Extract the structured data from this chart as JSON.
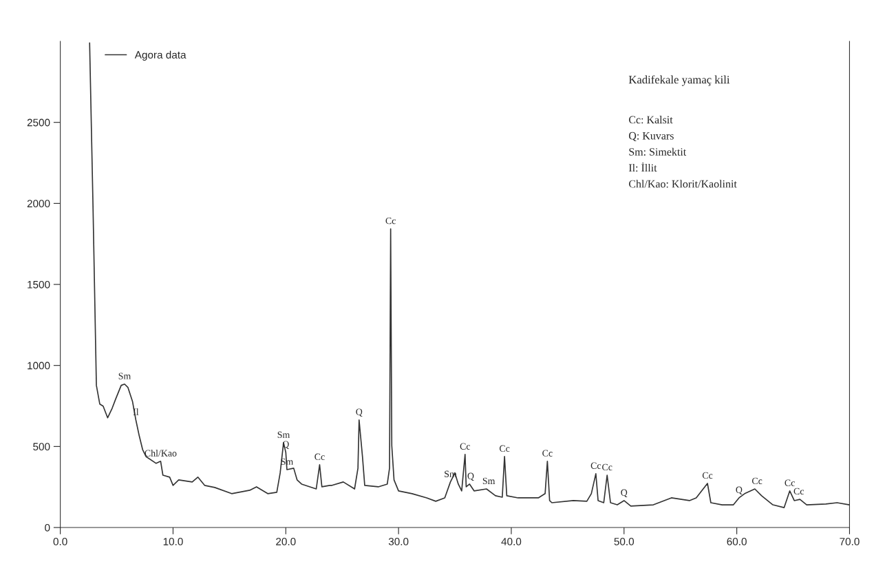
{
  "chart_data": {
    "type": "line",
    "x": [
      2.6,
      2.9,
      3.2,
      3.5,
      3.8,
      4.2,
      4.6,
      4.9,
      5.4,
      5.7,
      6.0,
      6.4,
      6.7,
      7.0,
      7.3,
      7.6,
      8.5,
      8.9,
      9.1,
      9.7,
      10.0,
      10.5,
      11.7,
      12.2,
      12.8,
      13.7,
      15.2,
      16.8,
      17.4,
      18.4,
      19.2,
      19.5,
      19.8,
      20.0,
      20.1,
      20.7,
      21.0,
      21.4,
      22.7,
      23.0,
      23.2,
      23.9,
      24.1,
      25.1,
      26.1,
      26.4,
      26.5,
      26.8,
      27.0,
      28.2,
      29.0,
      29.2,
      29.3,
      29.4,
      29.6,
      30.0,
      31.2,
      32.5,
      33.3,
      34.1,
      34.6,
      35.0,
      35.3,
      35.6,
      35.9,
      36.0,
      36.3,
      36.7,
      37.8,
      38.6,
      39.2,
      39.4,
      39.6,
      40.6,
      42.4,
      43.0,
      43.2,
      43.4,
      43.6,
      45.5,
      46.7,
      47.1,
      47.5,
      47.7,
      48.2,
      48.5,
      48.8,
      49.4,
      50.0,
      50.6,
      52.6,
      54.2,
      55.8,
      56.4,
      57.4,
      57.7,
      58.7,
      59.7,
      60.2,
      60.7,
      61.6,
      62.2,
      63.2,
      64.2,
      64.7,
      65.1,
      65.6,
      66.2,
      67.9,
      68.9,
      70.0
    ],
    "series": [
      {
        "name": "Agora data",
        "color": "#333333",
        "values": [
          2990,
          1983,
          877,
          762,
          749,
          677,
          736,
          791,
          877,
          885,
          864,
          779,
          664,
          566,
          481,
          438,
          396,
          409,
          323,
          311,
          260,
          294,
          281,
          311,
          260,
          247,
          209,
          230,
          251,
          209,
          217,
          336,
          523,
          464,
          357,
          366,
          294,
          268,
          238,
          387,
          251,
          260,
          260,
          281,
          238,
          366,
          664,
          438,
          260,
          251,
          268,
          366,
          1843,
          506,
          294,
          226,
          209,
          183,
          162,
          183,
          281,
          336,
          268,
          226,
          451,
          251,
          268,
          226,
          238,
          196,
          187,
          438,
          196,
          183,
          183,
          209,
          409,
          166,
          153,
          166,
          162,
          209,
          332,
          166,
          153,
          323,
          153,
          140,
          166,
          132,
          140,
          183,
          166,
          183,
          272,
          153,
          140,
          140,
          183,
          209,
          238,
          196,
          140,
          123,
          226,
          166,
          174,
          140,
          145,
          153,
          140
        ]
      }
    ],
    "xlim": [
      0,
      70
    ],
    "ylim": [
      0,
      3000
    ],
    "xticks": [
      {
        "value": 0,
        "label": "0.0"
      },
      {
        "value": 10,
        "label": "10.0"
      },
      {
        "value": 20,
        "label": "20.0"
      },
      {
        "value": 30,
        "label": "30.0"
      },
      {
        "value": 40,
        "label": "40.0"
      },
      {
        "value": 50,
        "label": "50.0"
      },
      {
        "value": 60,
        "label": "60.0"
      },
      {
        "value": 70,
        "label": "70.0"
      }
    ],
    "yticks": [
      0,
      500,
      1000,
      1500,
      2000,
      2500
    ],
    "grid": false,
    "legend": "top left",
    "marker": "none",
    "line_style": "solid",
    "annotations": [
      "Kadifekale yamaç kili",
      "Cc: Kalsit",
      "Q: Kuvars",
      "Sm: Simektit",
      "Il: İllit",
      "Chl/Kao: Klorit/Kaolinit",
      {
        "text": "Sm",
        "x": 5.7,
        "y": 885
      },
      {
        "text": "Il",
        "x": 6.7,
        "y": 664
      },
      {
        "text": "Chl/Kao",
        "x": 8.9,
        "y": 409
      },
      {
        "text": "Sm",
        "x": 19.8,
        "y": 523
      },
      {
        "text": "Q",
        "x": 20.0,
        "y": 464
      },
      {
        "text": "Sm",
        "x": 20.1,
        "y": 357
      },
      {
        "text": "Cc",
        "x": 23.0,
        "y": 387
      },
      {
        "text": "Q",
        "x": 26.5,
        "y": 664
      },
      {
        "text": "Cc",
        "x": 29.3,
        "y": 1843
      },
      {
        "text": "Sm",
        "x": 34.6,
        "y": 281
      },
      {
        "text": "Cc",
        "x": 35.9,
        "y": 451
      },
      {
        "text": "Q",
        "x": 36.4,
        "y": 268
      },
      {
        "text": "Sm",
        "x": 38.0,
        "y": 238
      },
      {
        "text": "Cc",
        "x": 39.4,
        "y": 438
      },
      {
        "text": "Cc",
        "x": 43.2,
        "y": 409
      },
      {
        "text": "Cc",
        "x": 47.5,
        "y": 332
      },
      {
        "text": "Cc",
        "x": 48.5,
        "y": 323
      },
      {
        "text": "Q",
        "x": 50.0,
        "y": 166
      },
      {
        "text": "Cc",
        "x": 57.4,
        "y": 272
      },
      {
        "text": "Q",
        "x": 60.2,
        "y": 183
      },
      {
        "text": "Cc",
        "x": 61.8,
        "y": 238
      },
      {
        "text": "Cc",
        "x": 64.7,
        "y": 226
      },
      {
        "text": "Cc",
        "x": 65.5,
        "y": 174
      }
    ]
  }
}
